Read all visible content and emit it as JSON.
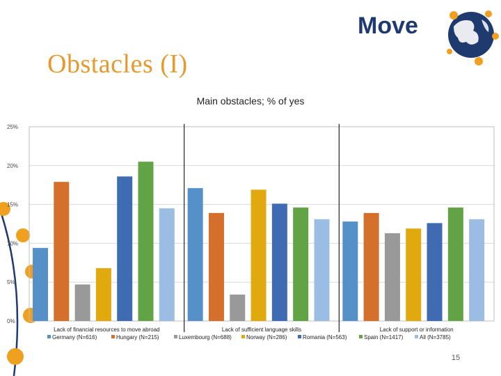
{
  "slide": {
    "title": "Obstacles (I)",
    "page_number": "15"
  },
  "brand": {
    "name": "Move",
    "accent": "#e59a2e",
    "text_color": "#1f3a6e",
    "globe_icon": "globe-icon"
  },
  "colors": {
    "series": [
      "#5590c8",
      "#d4702c",
      "#999999",
      "#e0aa0f",
      "#3e6bb2",
      "#62a445",
      "#9cbde3"
    ]
  },
  "chart_data": {
    "type": "bar",
    "title": "Main obstacles; % of yes",
    "categories": [
      "Lack of financial resources to move abroad",
      "Lack of sufficient language skills",
      "Lack of support or information"
    ],
    "series": [
      {
        "name": "Germany (N=616)",
        "values": [
          9.4,
          17.1,
          12.8
        ]
      },
      {
        "name": "Hungary (N=215)",
        "values": [
          17.9,
          13.9,
          13.9
        ]
      },
      {
        "name": "Luxembourg (N=688)",
        "values": [
          4.7,
          3.4,
          11.3
        ]
      },
      {
        "name": "Norway (N=286)",
        "values": [
          6.8,
          16.9,
          11.9
        ]
      },
      {
        "name": "Romania (N=563)",
        "values": [
          18.6,
          15.1,
          12.6
        ]
      },
      {
        "name": "Spain (N=1417)",
        "values": [
          20.5,
          14.6,
          14.6
        ]
      },
      {
        "name": "All (N=3785)",
        "values": [
          14.5,
          13.1,
          13.1
        ]
      }
    ],
    "y_ticks": [
      "0%",
      "5%",
      "10%",
      "15%",
      "20%",
      "25%"
    ],
    "ylim": [
      0,
      25
    ],
    "legend_position": "bottom"
  }
}
